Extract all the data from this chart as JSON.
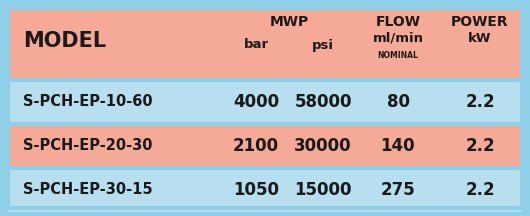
{
  "rows": [
    [
      "S-PCH-EP-10-60",
      "4000",
      "58000",
      "80",
      "2.2"
    ],
    [
      "S-PCH-EP-20-30",
      "2100",
      "30000",
      "140",
      "2.2"
    ],
    [
      "S-PCH-EP-30-15",
      "1050",
      "15000",
      "275",
      "2.2"
    ]
  ],
  "bg_outer": "#8fd0e8",
  "bg_header": "#f5aa97",
  "bg_row_blue": "#b8dff0",
  "bg_row_salmon": "#f5aa97",
  "row_colors": [
    "#b8dff0",
    "#f5aa97",
    "#b8dff0"
  ],
  "text_color": "#1a1a1a",
  "fig_w": 5.3,
  "fig_h": 2.16,
  "dpi": 100
}
